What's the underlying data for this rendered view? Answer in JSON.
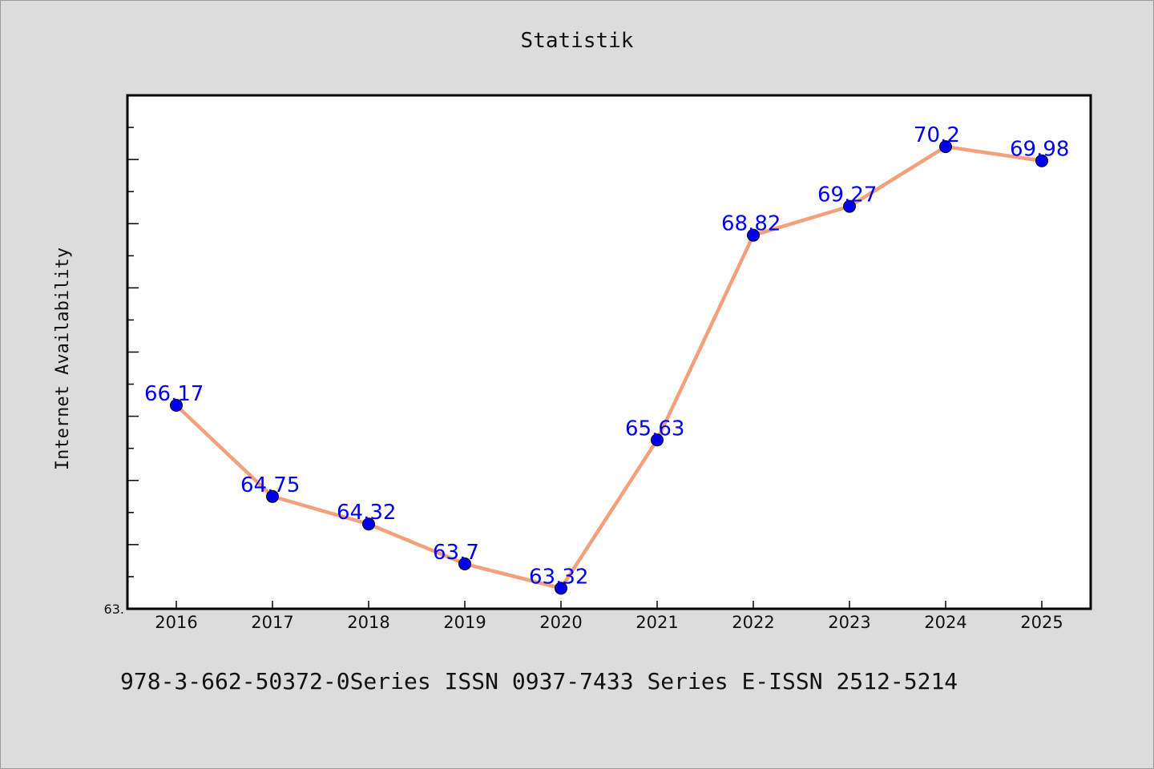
{
  "title": "Statistik",
  "footer": "978-3-662-50372-0Series ISSN 0937-7433 Series E-ISSN 2512-5214",
  "colors": {
    "background": "#dcdcdc",
    "plot_background": "#ffffff",
    "line": "#f4a07c",
    "marker": "#0000ee",
    "data_label": "#0000ee"
  },
  "chart_data": {
    "type": "line",
    "title": "Statistik",
    "xlabel": "",
    "ylabel": "Internet Availability",
    "categories": [
      "2016",
      "2017",
      "2018",
      "2019",
      "2020",
      "2021",
      "2022",
      "2023",
      "2024",
      "2025"
    ],
    "series": [
      {
        "values": [
          66.17,
          64.75,
          64.32,
          63.7,
          63.32,
          65.63,
          68.82,
          69.27,
          70.2,
          69.98
        ]
      }
    ],
    "data_labels": [
      "66.17",
      "64.75",
      "64.32",
      "63.7",
      "63.32",
      "65.63",
      "68.82",
      "69.27",
      "70.2",
      "69.98"
    ],
    "ylim": [
      63.0,
      71.0
    ],
    "y_tick_labels": [
      "63."
    ],
    "grid": false,
    "legend": "none"
  }
}
